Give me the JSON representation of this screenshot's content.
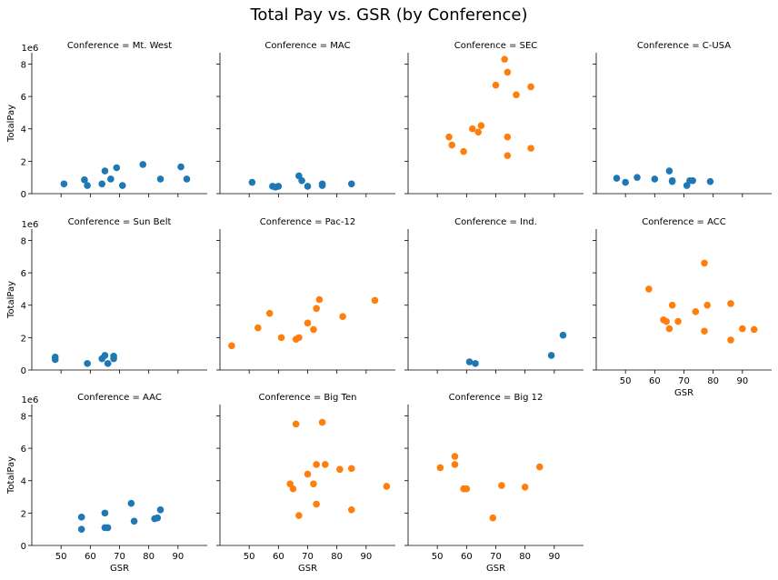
{
  "title": "Total Pay vs. GSR (by Conference)",
  "colors": {
    "blue": "#1f77b4",
    "orange": "#ff7f0e"
  },
  "chart_data": {
    "type": "scatter",
    "title": "Total Pay vs. GSR (by Conference)",
    "xlabel": "GSR",
    "ylabel": "TotalPay",
    "y_offset_text": "1e6",
    "xlim": [
      40,
      100
    ],
    "ylim": [
      0,
      8.7
    ],
    "x_ticks": [
      50,
      60,
      70,
      80,
      90
    ],
    "y_ticks": [
      0,
      2,
      4,
      6,
      8
    ],
    "panels": [
      {
        "title": "Conference = Mt. West",
        "color": "blue",
        "points": [
          [
            51,
            0.6
          ],
          [
            58,
            0.85
          ],
          [
            59,
            0.5
          ],
          [
            64,
            0.6
          ],
          [
            65,
            1.4
          ],
          [
            67,
            0.9
          ],
          [
            69,
            1.6
          ],
          [
            71,
            0.5
          ],
          [
            78,
            1.8
          ],
          [
            84,
            0.9
          ],
          [
            91,
            1.65
          ],
          [
            93,
            0.9
          ]
        ]
      },
      {
        "title": "Conference = MAC",
        "color": "blue",
        "points": [
          [
            51,
            0.7
          ],
          [
            58,
            0.45
          ],
          [
            59,
            0.4
          ],
          [
            60,
            0.45
          ],
          [
            67,
            1.1
          ],
          [
            68,
            0.8
          ],
          [
            70,
            0.45
          ],
          [
            75,
            0.6
          ],
          [
            75,
            0.5
          ],
          [
            85,
            0.6
          ]
        ]
      },
      {
        "title": "Conference = SEC",
        "color": "orange",
        "points": [
          [
            54,
            3.5
          ],
          [
            55,
            3.0
          ],
          [
            59,
            2.6
          ],
          [
            62,
            4.0
          ],
          [
            64,
            3.8
          ],
          [
            65,
            4.2
          ],
          [
            70,
            6.7
          ],
          [
            73,
            8.3
          ],
          [
            74,
            7.5
          ],
          [
            74,
            3.5
          ],
          [
            74,
            2.35
          ],
          [
            77,
            6.1
          ],
          [
            82,
            6.6
          ],
          [
            82,
            2.8
          ]
        ]
      },
      {
        "title": "Conference = C-USA",
        "color": "blue",
        "points": [
          [
            47,
            0.95
          ],
          [
            50,
            0.7
          ],
          [
            54,
            1.0
          ],
          [
            60,
            0.9
          ],
          [
            65,
            1.4
          ],
          [
            66,
            0.8
          ],
          [
            66,
            0.75
          ],
          [
            71,
            0.5
          ],
          [
            72,
            0.8
          ],
          [
            73,
            0.8
          ],
          [
            79,
            0.75
          ]
        ]
      },
      {
        "title": "Conference = Sun Belt",
        "color": "blue",
        "points": [
          [
            48,
            0.8
          ],
          [
            48,
            0.65
          ],
          [
            59,
            0.4
          ],
          [
            64,
            0.7
          ],
          [
            65,
            0.9
          ],
          [
            66,
            0.4
          ],
          [
            68,
            0.85
          ],
          [
            68,
            0.7
          ]
        ]
      },
      {
        "title": "Conference = Pac-12",
        "color": "orange",
        "points": [
          [
            44,
            1.5
          ],
          [
            53,
            2.6
          ],
          [
            57,
            3.5
          ],
          [
            61,
            2.0
          ],
          [
            66,
            1.9
          ],
          [
            67,
            2.0
          ],
          [
            70,
            2.9
          ],
          [
            72,
            2.5
          ],
          [
            73,
            3.8
          ],
          [
            74,
            4.35
          ],
          [
            82,
            3.3
          ],
          [
            93,
            4.3
          ]
        ]
      },
      {
        "title": "Conference = Ind.",
        "color": "blue",
        "points": [
          [
            61,
            0.5
          ],
          [
            63,
            0.4
          ],
          [
            89,
            0.9
          ],
          [
            93,
            2.15
          ]
        ]
      },
      {
        "title": "Conference = ACC",
        "color": "orange",
        "points": [
          [
            58,
            5.0
          ],
          [
            63,
            3.1
          ],
          [
            64,
            3.0
          ],
          [
            65,
            2.55
          ],
          [
            66,
            4.0
          ],
          [
            68,
            3.0
          ],
          [
            74,
            3.6
          ],
          [
            77,
            6.6
          ],
          [
            77,
            2.4
          ],
          [
            78,
            4.0
          ],
          [
            86,
            4.1
          ],
          [
            86,
            1.85
          ],
          [
            90,
            2.55
          ],
          [
            94,
            2.5
          ]
        ]
      },
      {
        "title": "Conference = AAC",
        "color": "blue",
        "points": [
          [
            57,
            1.75
          ],
          [
            57,
            1.0
          ],
          [
            65,
            2.0
          ],
          [
            65,
            1.1
          ],
          [
            66,
            1.1
          ],
          [
            74,
            2.6
          ],
          [
            75,
            1.5
          ],
          [
            82,
            1.65
          ],
          [
            83,
            1.7
          ],
          [
            84,
            2.2
          ]
        ]
      },
      {
        "title": "Conference = Big Ten",
        "color": "orange",
        "points": [
          [
            64,
            3.8
          ],
          [
            65,
            3.5
          ],
          [
            66,
            7.5
          ],
          [
            67,
            1.85
          ],
          [
            70,
            4.4
          ],
          [
            72,
            3.8
          ],
          [
            73,
            2.55
          ],
          [
            73,
            5.0
          ],
          [
            75,
            7.6
          ],
          [
            76,
            5.0
          ],
          [
            81,
            4.7
          ],
          [
            85,
            4.75
          ],
          [
            85,
            2.2
          ],
          [
            97,
            3.65
          ]
        ]
      },
      {
        "title": "Conference = Big 12",
        "color": "orange",
        "points": [
          [
            51,
            4.8
          ],
          [
            56,
            5.5
          ],
          [
            56,
            5.0
          ],
          [
            59,
            3.5
          ],
          [
            60,
            3.5
          ],
          [
            69,
            1.7
          ],
          [
            72,
            3.7
          ],
          [
            80,
            3.6
          ],
          [
            85,
            4.85
          ]
        ]
      }
    ]
  }
}
